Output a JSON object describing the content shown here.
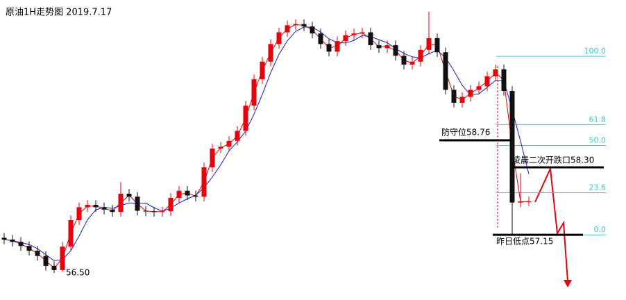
{
  "chart_data": {
    "type": "candlestick",
    "title": "原油1H走势图  2019.7.17",
    "up_color": "#e8000b",
    "down_color": "#111111",
    "ma_colors": [
      "#e8000b",
      "#1a1acc"
    ],
    "ylim": [
      56.04,
      61.15
    ],
    "open": [
      57.1,
      57.07,
      57.03,
      56.96,
      56.88,
      56.79,
      56.62,
      56.55,
      56.95,
      57.4,
      57.62,
      57.66,
      57.62,
      57.58,
      57.54,
      57.85,
      57.8,
      57.56,
      57.55,
      57.54,
      57.55,
      57.78,
      57.9,
      57.82,
      57.8,
      58.3,
      58.62,
      58.65,
      58.75,
      58.92,
      59.35,
      59.8,
      60.1,
      60.4,
      60.6,
      60.72,
      60.74,
      60.7,
      60.58,
      60.4,
      60.27,
      60.45,
      60.55,
      60.58,
      60.6,
      60.38,
      60.33,
      60.38,
      60.2,
      60.05,
      60.1,
      60.3,
      60.5,
      60.26,
      59.62,
      59.4,
      59.5,
      59.62,
      59.68,
      59.85,
      59.97,
      59.6,
      57.7,
      57.72
    ],
    "high": [
      57.18,
      57.15,
      57.11,
      57.04,
      56.96,
      56.87,
      56.7,
      57.03,
      57.48,
      57.7,
      57.74,
      57.74,
      57.7,
      57.66,
      58.05,
      57.93,
      57.88,
      57.64,
      57.63,
      57.63,
      57.86,
      57.98,
      57.98,
      57.9,
      58.38,
      58.7,
      58.73,
      58.83,
      59.0,
      59.43,
      59.88,
      60.18,
      60.48,
      60.68,
      60.8,
      60.82,
      60.82,
      60.78,
      60.66,
      60.48,
      60.53,
      60.63,
      60.66,
      60.68,
      60.68,
      60.46,
      60.46,
      60.46,
      60.28,
      60.18,
      60.38,
      60.95,
      60.58,
      60.34,
      59.7,
      59.58,
      59.7,
      59.76,
      59.93,
      60.05,
      60.05,
      59.68,
      58.2,
      57.8
    ],
    "low": [
      56.99,
      56.95,
      56.88,
      56.8,
      56.71,
      56.54,
      56.5,
      56.52,
      56.87,
      57.32,
      57.54,
      57.54,
      57.5,
      57.46,
      57.46,
      57.72,
      57.48,
      57.47,
      57.46,
      57.46,
      57.47,
      57.7,
      57.74,
      57.72,
      57.72,
      58.22,
      58.54,
      58.57,
      58.67,
      58.84,
      59.27,
      59.72,
      60.02,
      60.32,
      60.52,
      60.64,
      60.62,
      60.5,
      60.32,
      60.19,
      60.19,
      60.37,
      60.47,
      60.5,
      60.3,
      60.25,
      60.25,
      60.12,
      59.97,
      59.97,
      60.02,
      60.22,
      60.18,
      59.54,
      59.32,
      59.32,
      59.42,
      59.54,
      59.6,
      59.77,
      59.52,
      57.15,
      57.62,
      57.64
    ],
    "close": [
      57.07,
      57.03,
      56.96,
      56.88,
      56.79,
      56.62,
      56.55,
      56.95,
      57.4,
      57.62,
      57.66,
      57.62,
      57.58,
      57.54,
      57.85,
      57.8,
      57.56,
      57.55,
      57.54,
      57.55,
      57.78,
      57.9,
      57.82,
      57.8,
      58.3,
      58.62,
      58.65,
      58.75,
      58.92,
      59.35,
      59.8,
      60.1,
      60.4,
      60.6,
      60.72,
      60.74,
      60.7,
      60.58,
      60.4,
      60.27,
      60.45,
      60.55,
      60.58,
      60.6,
      60.38,
      60.33,
      60.38,
      60.2,
      60.05,
      60.1,
      60.3,
      60.5,
      60.26,
      59.62,
      59.4,
      59.5,
      59.62,
      59.68,
      59.85,
      59.97,
      59.6,
      57.7,
      57.72,
      57.72
    ],
    "fib": {
      "low": 57.15,
      "high": 60.19,
      "color": "#33cccc",
      "levels": [
        {
          "value": 100,
          "label": "100.0"
        },
        {
          "value": 61.8,
          "label": "61.8"
        },
        {
          "value": 50,
          "label": "50.0"
        },
        {
          "value": 23.6,
          "label": "23.6"
        },
        {
          "value": 0,
          "label": "0.0"
        }
      ]
    },
    "annotations": [
      {
        "text": "防守位58.76",
        "value": 58.76
      },
      {
        "text": "凌晨二次开跌口58.30",
        "value": 58.3
      },
      {
        "text": "昨日低点57.15",
        "value": 57.15
      },
      {
        "text": "56.50",
        "value": 56.5
      }
    ]
  }
}
